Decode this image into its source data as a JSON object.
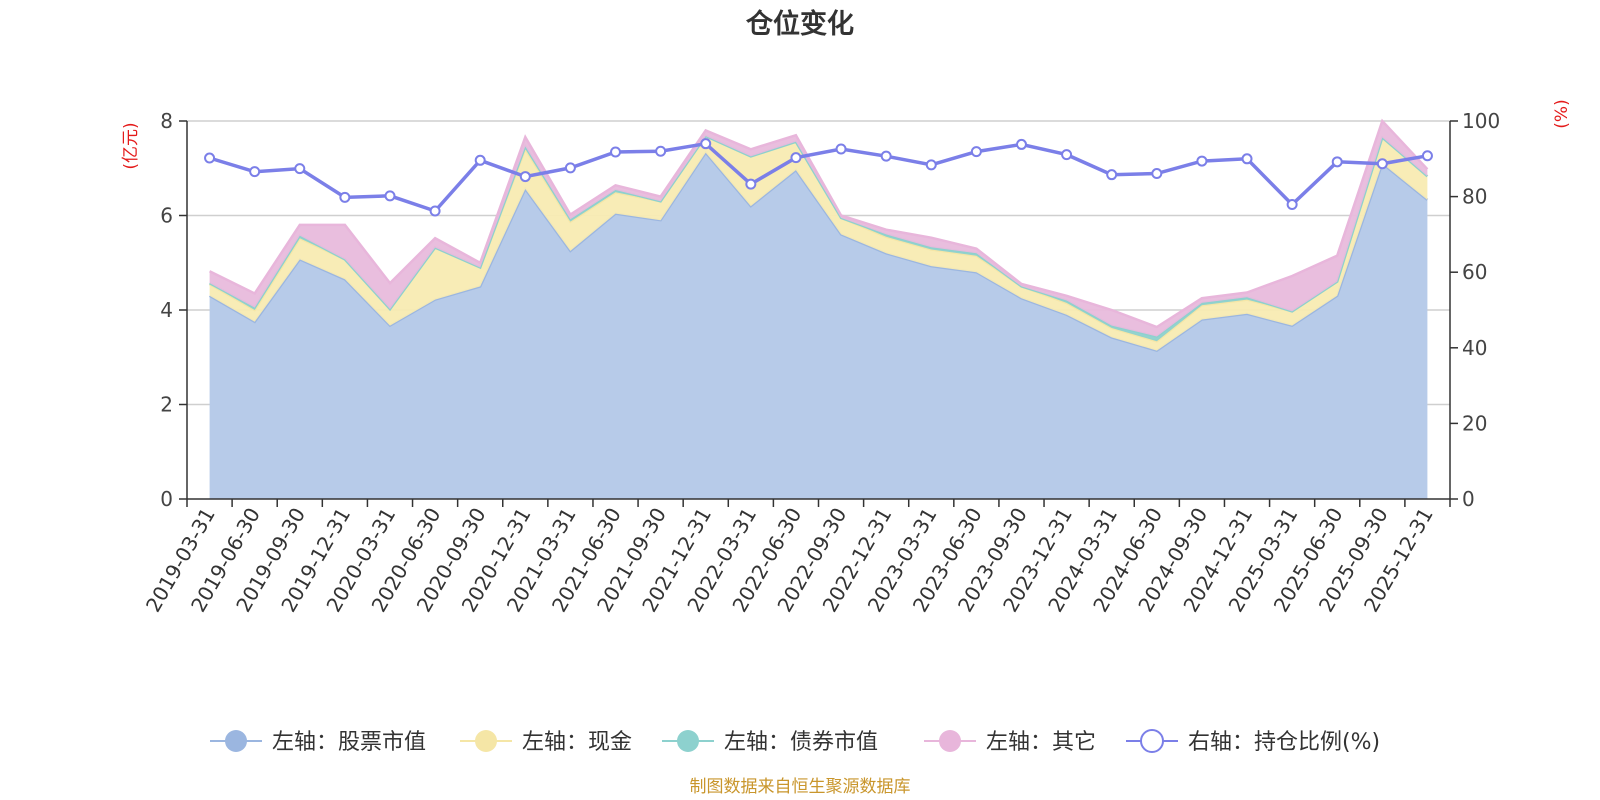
{
  "chart_data": {
    "type": "area",
    "title": "仓位变化",
    "left_axis_unit": "(亿元)",
    "right_axis_unit": "(%)",
    "ylim_left": [
      0,
      8
    ],
    "ylim_right": [
      0,
      100
    ],
    "left_ticks": [
      "0",
      "2",
      "4",
      "6",
      "8"
    ],
    "right_ticks": [
      "0",
      "20",
      "40",
      "60",
      "80",
      "100"
    ],
    "grid": true,
    "stacked": true,
    "legend_position": "bottom",
    "categories": [
      "2019-03-31",
      "2019-06-30",
      "2019-09-30",
      "2019-12-31",
      "2020-03-31",
      "2020-06-30",
      "2020-09-30",
      "2020-12-31",
      "2021-03-31",
      "2021-06-30",
      "2021-09-30",
      "2021-12-31",
      "2022-03-31",
      "2022-06-30",
      "2022-09-30",
      "2022-12-31",
      "2023-03-31",
      "2023-06-30",
      "2023-09-30",
      "2023-12-31",
      "2024-03-31",
      "2024-06-30",
      "2024-09-30",
      "2024-12-31",
      "2025-03-31",
      "2025-06-30",
      "2025-09-30",
      "2025-12-31"
    ],
    "series": [
      {
        "name": "左轴：股票市值",
        "axis": "left",
        "color": "#9bb6e0",
        "fill": "#b7cbe9",
        "values": [
          4.3,
          3.75,
          5.07,
          4.65,
          3.67,
          4.22,
          4.5,
          6.56,
          5.25,
          6.04,
          5.9,
          7.33,
          6.2,
          6.96,
          5.6,
          5.2,
          4.93,
          4.8,
          4.25,
          3.9,
          3.42,
          3.14,
          3.8,
          3.92,
          3.67,
          4.3,
          7.1,
          6.33
        ]
      },
      {
        "name": "左轴：现金",
        "axis": "left",
        "color": "#f5e6a6",
        "fill": "#f8ebb2",
        "values": [
          0.25,
          0.25,
          0.45,
          0.42,
          0.35,
          1.1,
          0.4,
          0.85,
          0.62,
          0.45,
          0.4,
          0.35,
          1.05,
          0.6,
          0.35,
          0.35,
          0.35,
          0.35,
          0.25,
          0.25,
          0.2,
          0.2,
          0.3,
          0.3,
          0.3,
          0.3,
          0.55,
          0.5
        ]
      },
      {
        "name": "左轴：债券市值",
        "axis": "left",
        "color": "#8dd1ce",
        "fill": "#8dd1ce",
        "values": [
          0.02,
          0.05,
          0.05,
          0.0,
          0.0,
          0.0,
          0.0,
          0.05,
          0.05,
          0.05,
          0.0,
          0.0,
          0.0,
          0.0,
          0.0,
          0.05,
          0.05,
          0.05,
          0.0,
          0.05,
          0.05,
          0.1,
          0.05,
          0.05,
          0.0,
          0.0,
          0.0,
          0.0
        ]
      },
      {
        "name": "左轴：其它",
        "axis": "left",
        "color": "#e8b6db",
        "fill": "#e8bbdc",
        "values": [
          0.25,
          0.3,
          0.23,
          0.73,
          0.55,
          0.2,
          0.1,
          0.2,
          0.1,
          0.1,
          0.1,
          0.12,
          0.15,
          0.14,
          0.05,
          0.1,
          0.2,
          0.1,
          0.05,
          0.1,
          0.33,
          0.2,
          0.1,
          0.1,
          0.75,
          0.55,
          0.35,
          0.15
        ]
      },
      {
        "name": "右轴：持仓比例(%)",
        "axis": "right",
        "color": "#7b7fe8",
        "values": [
          90.2,
          86.6,
          87.4,
          79.8,
          80.2,
          76.2,
          89.6,
          85.3,
          87.6,
          91.8,
          92.0,
          94.0,
          83.3,
          90.3,
          92.6,
          90.7,
          88.4,
          91.9,
          93.8,
          91.1,
          85.8,
          86.1,
          89.4,
          90.0,
          77.9,
          89.2,
          88.7,
          90.8
        ]
      }
    ]
  },
  "footer": "制图数据来自恒生聚源数据库"
}
